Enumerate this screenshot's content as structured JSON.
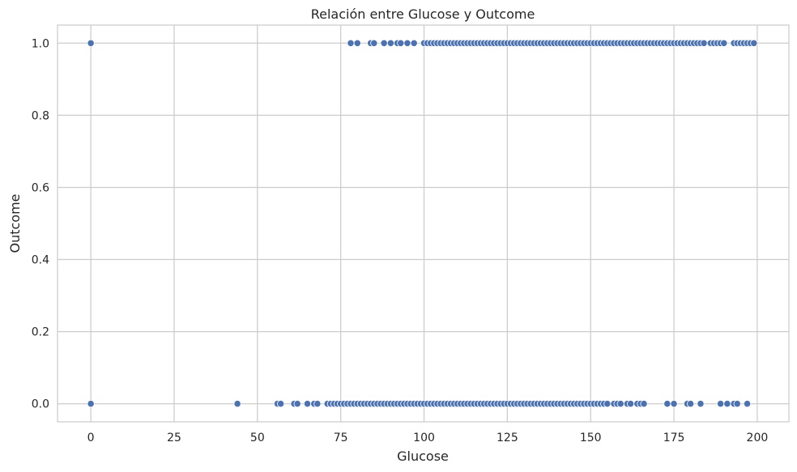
{
  "chart_data": {
    "type": "scatter",
    "title": "Relación entre Glucose y Outcome",
    "xlabel": "Glucose",
    "ylabel": "Outcome",
    "xlim": [
      -10,
      209.5
    ],
    "ylim": [
      -0.05,
      1.05
    ],
    "xticks": [
      0,
      25,
      50,
      75,
      100,
      125,
      150,
      175,
      200
    ],
    "yticks": [
      0.0,
      0.2,
      0.4,
      0.6,
      0.8,
      1.0
    ],
    "xtick_labels": [
      "0",
      "25",
      "50",
      "75",
      "100",
      "125",
      "150",
      "175",
      "200"
    ],
    "ytick_labels": [
      "0.0",
      "0.2",
      "0.4",
      "0.6",
      "0.8",
      "1.0"
    ],
    "grid": true,
    "marker_color": "#4c72b0",
    "series": [
      {
        "points": [
          [
            0,
            1
          ],
          [
            78,
            1
          ],
          [
            80,
            1
          ],
          [
            84,
            1
          ],
          [
            85,
            1
          ],
          [
            88,
            1
          ],
          [
            90,
            1
          ],
          [
            92,
            1
          ],
          [
            93,
            1
          ],
          [
            95,
            1
          ],
          [
            97,
            1
          ],
          [
            100,
            1
          ],
          [
            101,
            1
          ],
          [
            102,
            1
          ],
          [
            103,
            1
          ],
          [
            104,
            1
          ],
          [
            105,
            1
          ],
          [
            106,
            1
          ],
          [
            107,
            1
          ],
          [
            108,
            1
          ],
          [
            109,
            1
          ],
          [
            110,
            1
          ],
          [
            111,
            1
          ],
          [
            112,
            1
          ],
          [
            113,
            1
          ],
          [
            114,
            1
          ],
          [
            115,
            1
          ],
          [
            116,
            1
          ],
          [
            117,
            1
          ],
          [
            118,
            1
          ],
          [
            119,
            1
          ],
          [
            120,
            1
          ],
          [
            121,
            1
          ],
          [
            122,
            1
          ],
          [
            123,
            1
          ],
          [
            124,
            1
          ],
          [
            125,
            1
          ],
          [
            126,
            1
          ],
          [
            127,
            1
          ],
          [
            128,
            1
          ],
          [
            129,
            1
          ],
          [
            130,
            1
          ],
          [
            131,
            1
          ],
          [
            132,
            1
          ],
          [
            133,
            1
          ],
          [
            134,
            1
          ],
          [
            135,
            1
          ],
          [
            136,
            1
          ],
          [
            137,
            1
          ],
          [
            138,
            1
          ],
          [
            139,
            1
          ],
          [
            140,
            1
          ],
          [
            141,
            1
          ],
          [
            142,
            1
          ],
          [
            143,
            1
          ],
          [
            144,
            1
          ],
          [
            145,
            1
          ],
          [
            146,
            1
          ],
          [
            147,
            1
          ],
          [
            148,
            1
          ],
          [
            149,
            1
          ],
          [
            150,
            1
          ],
          [
            151,
            1
          ],
          [
            152,
            1
          ],
          [
            153,
            1
          ],
          [
            154,
            1
          ],
          [
            155,
            1
          ],
          [
            156,
            1
          ],
          [
            157,
            1
          ],
          [
            158,
            1
          ],
          [
            159,
            1
          ],
          [
            160,
            1
          ],
          [
            161,
            1
          ],
          [
            162,
            1
          ],
          [
            163,
            1
          ],
          [
            164,
            1
          ],
          [
            165,
            1
          ],
          [
            166,
            1
          ],
          [
            167,
            1
          ],
          [
            168,
            1
          ],
          [
            169,
            1
          ],
          [
            170,
            1
          ],
          [
            171,
            1
          ],
          [
            172,
            1
          ],
          [
            173,
            1
          ],
          [
            174,
            1
          ],
          [
            175,
            1
          ],
          [
            176,
            1
          ],
          [
            177,
            1
          ],
          [
            178,
            1
          ],
          [
            179,
            1
          ],
          [
            180,
            1
          ],
          [
            181,
            1
          ],
          [
            182,
            1
          ],
          [
            183,
            1
          ],
          [
            184,
            1
          ],
          [
            186,
            1
          ],
          [
            187,
            1
          ],
          [
            188,
            1
          ],
          [
            189,
            1
          ],
          [
            190,
            1
          ],
          [
            193,
            1
          ],
          [
            194,
            1
          ],
          [
            195,
            1
          ],
          [
            196,
            1
          ],
          [
            197,
            1
          ],
          [
            198,
            1
          ],
          [
            199,
            1
          ],
          [
            0,
            0
          ],
          [
            44,
            0
          ],
          [
            56,
            0
          ],
          [
            57,
            0
          ],
          [
            61,
            0
          ],
          [
            62,
            0
          ],
          [
            65,
            0
          ],
          [
            67,
            0
          ],
          [
            68,
            0
          ],
          [
            71,
            0
          ],
          [
            72,
            0
          ],
          [
            73,
            0
          ],
          [
            74,
            0
          ],
          [
            75,
            0
          ],
          [
            76,
            0
          ],
          [
            77,
            0
          ],
          [
            78,
            0
          ],
          [
            79,
            0
          ],
          [
            80,
            0
          ],
          [
            81,
            0
          ],
          [
            82,
            0
          ],
          [
            83,
            0
          ],
          [
            84,
            0
          ],
          [
            85,
            0
          ],
          [
            86,
            0
          ],
          [
            87,
            0
          ],
          [
            88,
            0
          ],
          [
            89,
            0
          ],
          [
            90,
            0
          ],
          [
            91,
            0
          ],
          [
            92,
            0
          ],
          [
            93,
            0
          ],
          [
            94,
            0
          ],
          [
            95,
            0
          ],
          [
            96,
            0
          ],
          [
            97,
            0
          ],
          [
            98,
            0
          ],
          [
            99,
            0
          ],
          [
            100,
            0
          ],
          [
            101,
            0
          ],
          [
            102,
            0
          ],
          [
            103,
            0
          ],
          [
            104,
            0
          ],
          [
            105,
            0
          ],
          [
            106,
            0
          ],
          [
            107,
            0
          ],
          [
            108,
            0
          ],
          [
            109,
            0
          ],
          [
            110,
            0
          ],
          [
            111,
            0
          ],
          [
            112,
            0
          ],
          [
            113,
            0
          ],
          [
            114,
            0
          ],
          [
            115,
            0
          ],
          [
            116,
            0
          ],
          [
            117,
            0
          ],
          [
            118,
            0
          ],
          [
            119,
            0
          ],
          [
            120,
            0
          ],
          [
            121,
            0
          ],
          [
            122,
            0
          ],
          [
            123,
            0
          ],
          [
            124,
            0
          ],
          [
            125,
            0
          ],
          [
            126,
            0
          ],
          [
            127,
            0
          ],
          [
            128,
            0
          ],
          [
            129,
            0
          ],
          [
            130,
            0
          ],
          [
            131,
            0
          ],
          [
            132,
            0
          ],
          [
            133,
            0
          ],
          [
            134,
            0
          ],
          [
            135,
            0
          ],
          [
            136,
            0
          ],
          [
            137,
            0
          ],
          [
            138,
            0
          ],
          [
            139,
            0
          ],
          [
            140,
            0
          ],
          [
            141,
            0
          ],
          [
            142,
            0
          ],
          [
            143,
            0
          ],
          [
            144,
            0
          ],
          [
            145,
            0
          ],
          [
            146,
            0
          ],
          [
            147,
            0
          ],
          [
            148,
            0
          ],
          [
            149,
            0
          ],
          [
            150,
            0
          ],
          [
            151,
            0
          ],
          [
            152,
            0
          ],
          [
            153,
            0
          ],
          [
            154,
            0
          ],
          [
            155,
            0
          ],
          [
            157,
            0
          ],
          [
            158,
            0
          ],
          [
            159,
            0
          ],
          [
            161,
            0
          ],
          [
            162,
            0
          ],
          [
            164,
            0
          ],
          [
            165,
            0
          ],
          [
            166,
            0
          ],
          [
            173,
            0
          ],
          [
            175,
            0
          ],
          [
            179,
            0
          ],
          [
            180,
            0
          ],
          [
            183,
            0
          ],
          [
            189,
            0
          ],
          [
            191,
            0
          ],
          [
            193,
            0
          ],
          [
            194,
            0
          ],
          [
            197,
            0
          ]
        ]
      }
    ]
  }
}
